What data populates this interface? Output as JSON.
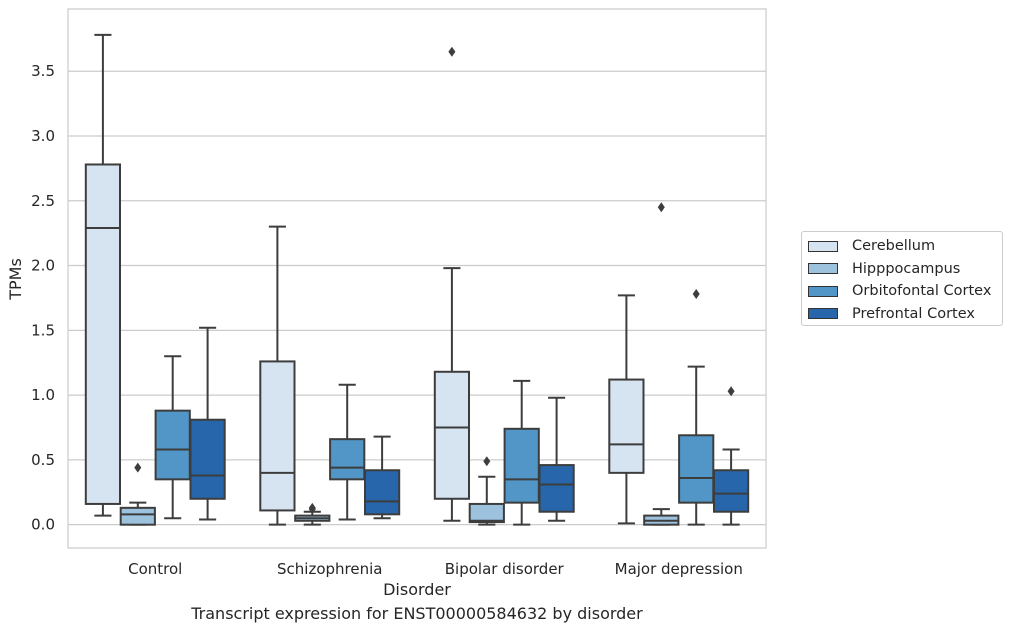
{
  "caption": "Transcript expression for ENST00000584632 by disorder",
  "chart_data": {
    "type": "box",
    "title": "",
    "xlabel": "Disorder",
    "ylabel": "TPMs",
    "ylim": [
      -0.18,
      3.98
    ],
    "yticks": [
      "0.0",
      "0.5",
      "1.0",
      "1.5",
      "2.0",
      "2.5",
      "3.0",
      "3.5"
    ],
    "categories": [
      "Control",
      "Schizophrenia",
      "Bipolar disorder",
      "Major depression"
    ],
    "grid": "horizontal",
    "legend_position": "right",
    "series": [
      {
        "name": "Cerebellum",
        "color": "#d6e4f2",
        "boxes": [
          {
            "whislo": 0.07,
            "q1": 0.16,
            "med": 2.29,
            "q3": 2.78,
            "whishi": 3.78,
            "fliers": []
          },
          {
            "whislo": 0.0,
            "q1": 0.11,
            "med": 0.4,
            "q3": 1.26,
            "whishi": 2.3,
            "fliers": []
          },
          {
            "whislo": 0.03,
            "q1": 0.2,
            "med": 0.75,
            "q3": 1.18,
            "whishi": 1.98,
            "fliers": [
              3.65
            ]
          },
          {
            "whislo": 0.01,
            "q1": 0.4,
            "med": 0.62,
            "q3": 1.12,
            "whishi": 1.77,
            "fliers": []
          }
        ]
      },
      {
        "name": "Hipppocampus",
        "color": "#9cc2de",
        "boxes": [
          {
            "whislo": 0.0,
            "q1": 0.0,
            "med": 0.08,
            "q3": 0.13,
            "whishi": 0.17,
            "fliers": [
              0.44
            ]
          },
          {
            "whislo": 0.0,
            "q1": 0.03,
            "med": 0.05,
            "q3": 0.07,
            "whishi": 0.1,
            "fliers": [
              0.13,
              0.12
            ]
          },
          {
            "whislo": 0.0,
            "q1": 0.02,
            "med": 0.03,
            "q3": 0.16,
            "whishi": 0.37,
            "fliers": [
              0.49
            ]
          },
          {
            "whislo": 0.0,
            "q1": 0.0,
            "med": 0.03,
            "q3": 0.07,
            "whishi": 0.12,
            "fliers": [
              2.45
            ]
          }
        ]
      },
      {
        "name": "Orbitofontal Cortex",
        "color": "#5196c6",
        "boxes": [
          {
            "whislo": 0.05,
            "q1": 0.35,
            "med": 0.58,
            "q3": 0.88,
            "whishi": 1.3,
            "fliers": []
          },
          {
            "whislo": 0.04,
            "q1": 0.35,
            "med": 0.44,
            "q3": 0.66,
            "whishi": 1.08,
            "fliers": []
          },
          {
            "whislo": 0.0,
            "q1": 0.17,
            "med": 0.35,
            "q3": 0.74,
            "whishi": 1.11,
            "fliers": []
          },
          {
            "whislo": 0.0,
            "q1": 0.17,
            "med": 0.36,
            "q3": 0.69,
            "whishi": 1.22,
            "fliers": [
              1.78
            ]
          }
        ]
      },
      {
        "name": "Prefrontal Cortex",
        "color": "#2766ab",
        "boxes": [
          {
            "whislo": 0.04,
            "q1": 0.2,
            "med": 0.38,
            "q3": 0.81,
            "whishi": 1.52,
            "fliers": []
          },
          {
            "whislo": 0.05,
            "q1": 0.08,
            "med": 0.18,
            "q3": 0.42,
            "whishi": 0.68,
            "fliers": []
          },
          {
            "whislo": 0.03,
            "q1": 0.1,
            "med": 0.31,
            "q3": 0.46,
            "whishi": 0.98,
            "fliers": []
          },
          {
            "whislo": 0.0,
            "q1": 0.1,
            "med": 0.24,
            "q3": 0.42,
            "whishi": 0.58,
            "fliers": [
              1.03
            ]
          }
        ]
      }
    ]
  }
}
